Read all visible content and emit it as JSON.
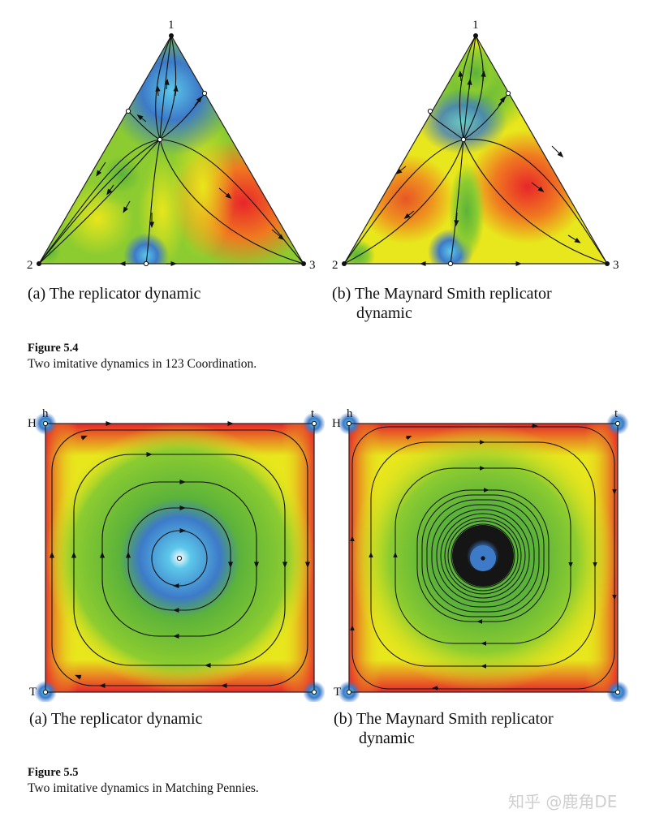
{
  "figure_5_4": {
    "label": "Figure 5.4",
    "caption": "Two imitative dynamics in 123 Coordination.",
    "panel_a": {
      "caption_main": "(a) The replicator dynamic",
      "vertices": {
        "top": "1",
        "left": "2",
        "right": "3"
      }
    },
    "panel_b": {
      "caption_main": "(b) The Maynard Smith replicator",
      "caption_cont": "dynamic",
      "vertices": {
        "top": "1",
        "left": "2",
        "right": "3"
      }
    }
  },
  "figure_5_5": {
    "label": "Figure 5.5",
    "caption": "Two imitative dynamics in Matching Pennies.",
    "panel_a": {
      "caption_main": "(a) The replicator dynamic",
      "corners": {
        "top_left_row": "H",
        "top_left_col": "h",
        "top_right_col": "t",
        "bottom_left_row": "T"
      }
    },
    "panel_b": {
      "caption_main": "(b) The Maynard Smith replicator",
      "caption_cont": "dynamic",
      "corners": {
        "top_left_row": "H",
        "top_left_col": "h",
        "top_right_col": "t",
        "bottom_left_row": "T"
      }
    }
  },
  "watermark": "知乎 @鹿角DE",
  "colors": {
    "red": "#e8262a",
    "yellow": "#e8e61c",
    "green": "#5cb33a",
    "blue": "#3d7ac8",
    "cyan": "#5cc8ea"
  }
}
